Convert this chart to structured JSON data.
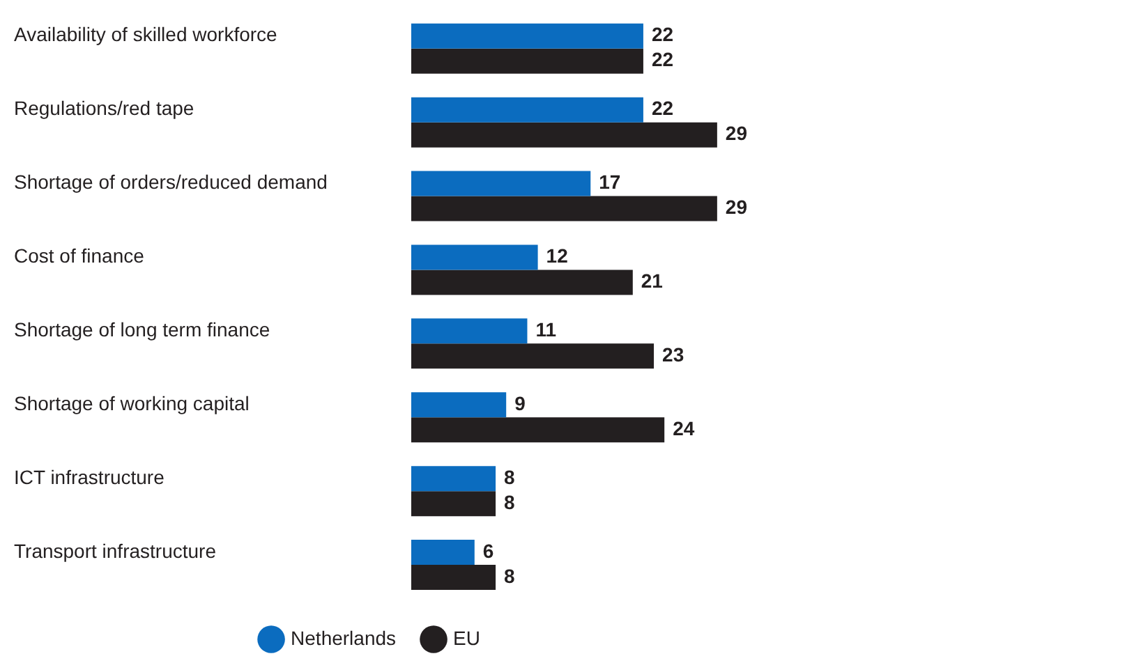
{
  "chart_data": {
    "type": "bar",
    "orientation": "horizontal",
    "categories": [
      "Availability of skilled workforce",
      "Regulations/red tape",
      "Shortage of orders/reduced demand",
      "Cost of finance",
      "Shortage of long term finance",
      "Shortage of working capital",
      "ICT infrastructure",
      "Transport infrastructure"
    ],
    "series": [
      {
        "name": "Netherlands",
        "color": "#0b6cbf",
        "values": [
          22,
          22,
          17,
          12,
          11,
          9,
          8,
          6
        ]
      },
      {
        "name": "EU",
        "color": "#231f20",
        "values": [
          22,
          29,
          29,
          21,
          23,
          24,
          8,
          8
        ]
      }
    ],
    "data_labels": true,
    "legend": "bottom",
    "grid": false
  }
}
